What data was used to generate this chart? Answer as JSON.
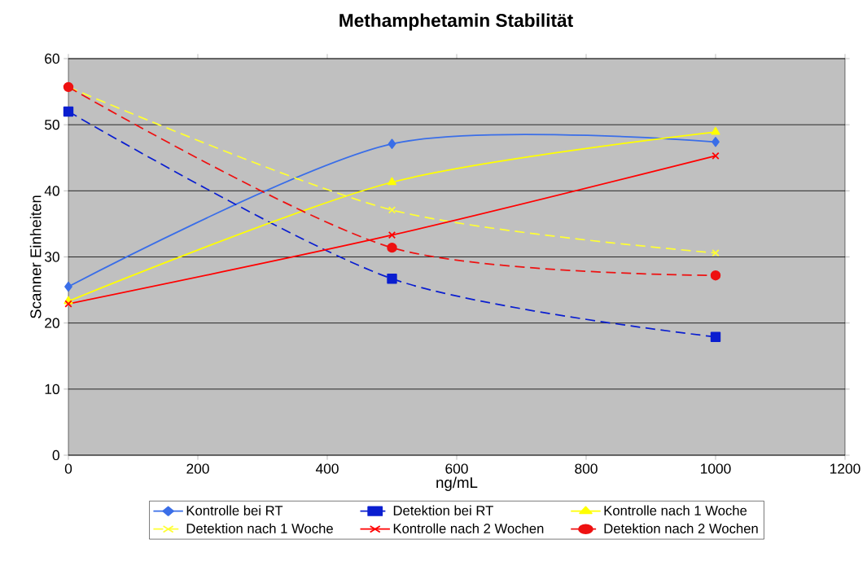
{
  "chart_data": {
    "type": "line",
    "title": "Methamphetamin Stabilität",
    "xlabel": "ng/mL",
    "ylabel": "Scanner Einheiten",
    "x": [
      0,
      500,
      1000
    ],
    "xlim": [
      0,
      1200
    ],
    "ylim": [
      0,
      60
    ],
    "xticks": [
      0,
      200,
      400,
      600,
      800,
      1000,
      1200
    ],
    "yticks": [
      0,
      10,
      20,
      30,
      40,
      50,
      60
    ],
    "grid": "y",
    "legend": "bottom",
    "series": [
      {
        "name": "Kontrolle bei RT",
        "color": "#3a6ee8",
        "values": [
          25.5,
          47.1,
          47.4
        ],
        "marker": "diamond",
        "line_style": "solid"
      },
      {
        "name": "Detektion bei RT",
        "color": "#0a1ed0",
        "values": [
          52.0,
          26.7,
          17.9
        ],
        "marker": "square",
        "line_style": "dashed"
      },
      {
        "name": "Kontrolle nach 1 Woche",
        "color": "#ffff00",
        "values": [
          23.3,
          41.3,
          48.9
        ],
        "marker": "triangle",
        "line_style": "solid"
      },
      {
        "name": "Detektion nach 1 Woche",
        "color": "#ffff33",
        "values": [
          55.7,
          37.1,
          30.6
        ],
        "marker": "cross",
        "line_style": "dashed"
      },
      {
        "name": "Kontrolle nach 2 Wochen",
        "color": "#ff0000",
        "values": [
          22.9,
          33.3,
          45.3
        ],
        "marker": "cross",
        "line_style": "solid"
      },
      {
        "name": "Detektion nach 2 Wochen",
        "color": "#ee1111",
        "values": [
          55.7,
          31.4,
          27.2
        ],
        "marker": "circle",
        "line_style": "dashed"
      }
    ]
  }
}
